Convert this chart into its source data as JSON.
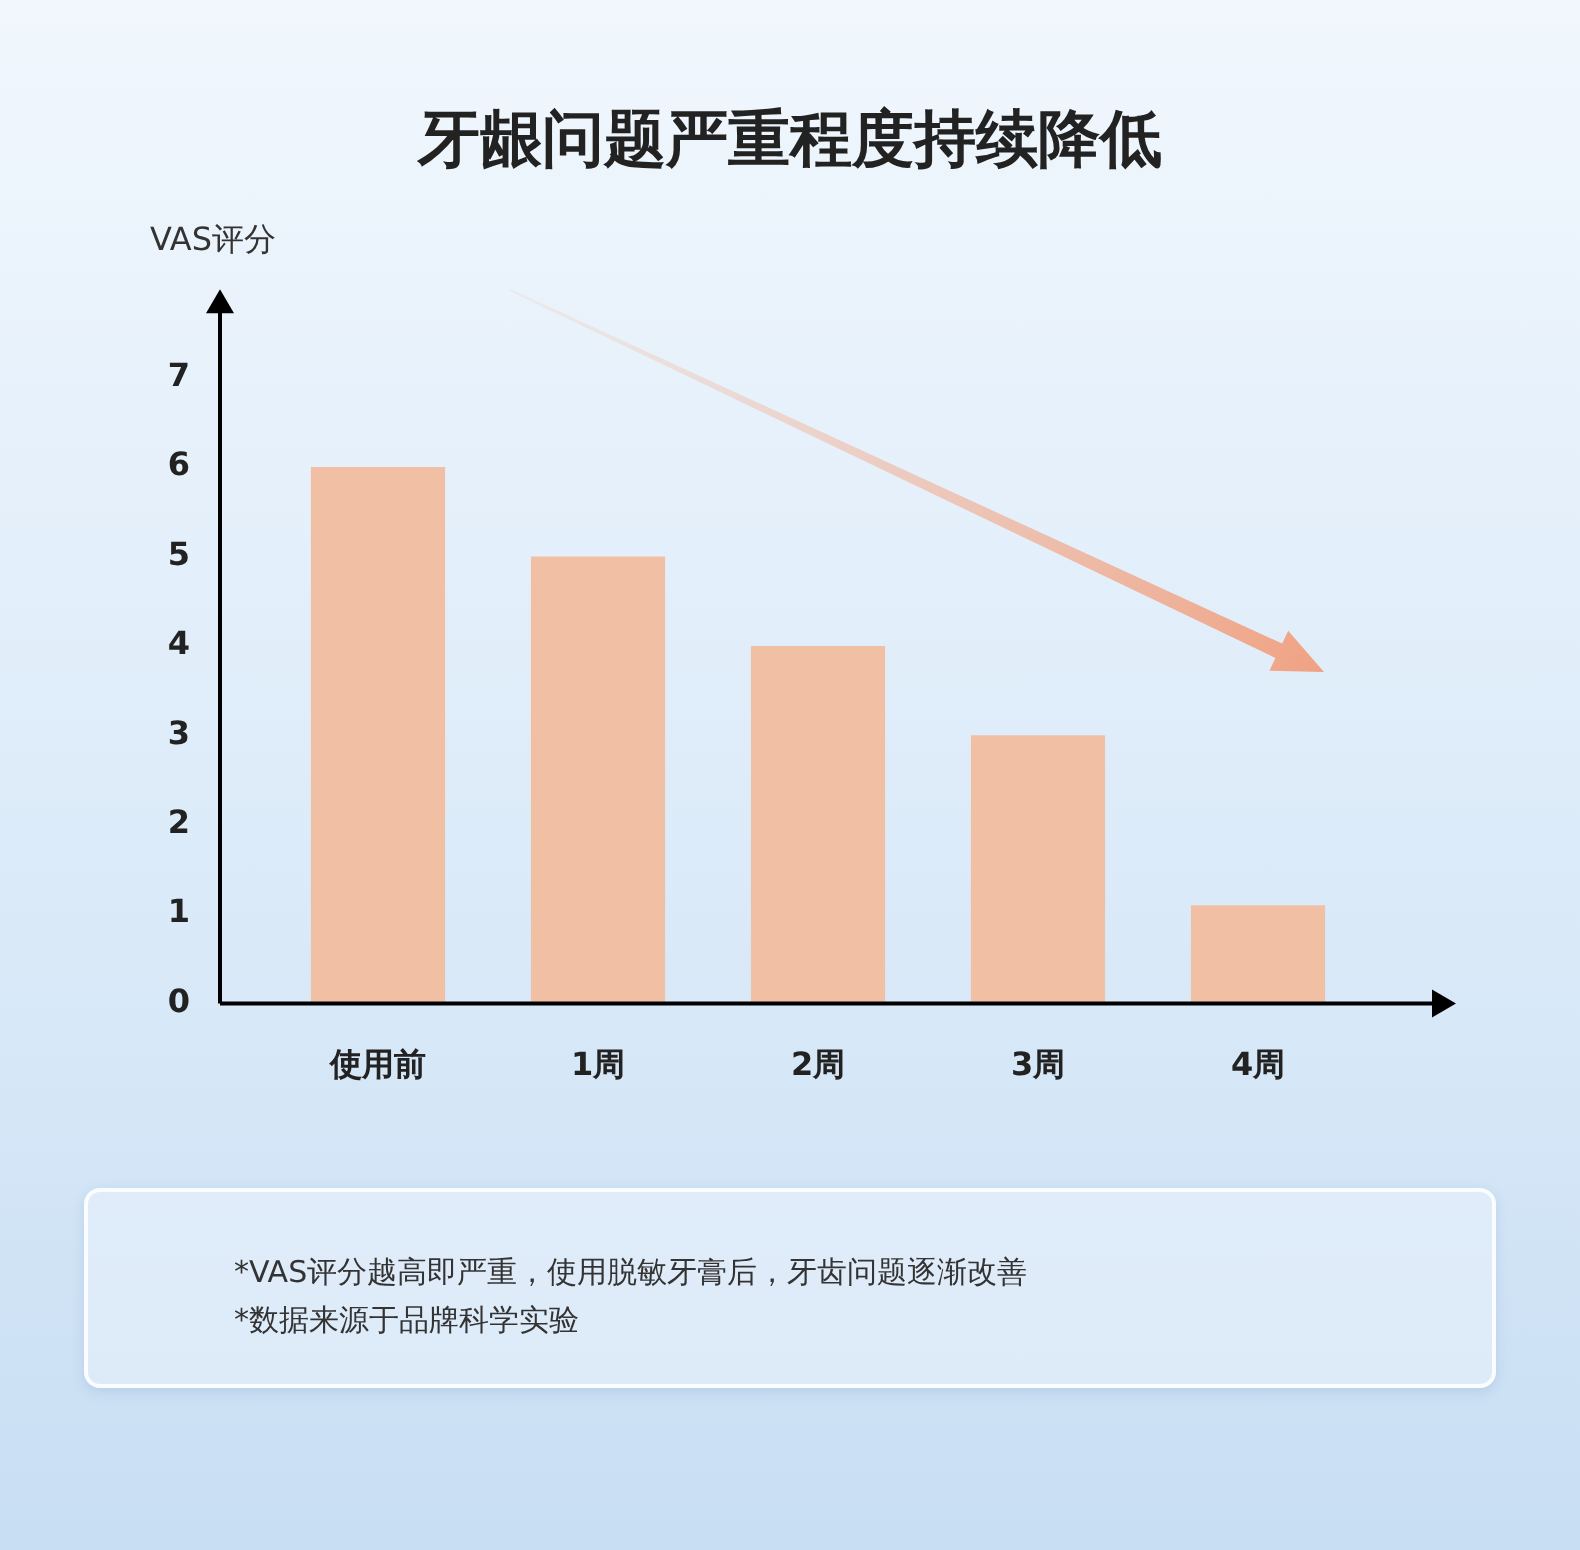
{
  "chart_data": {
    "type": "bar",
    "title": "牙龈问题严重程度持续降低",
    "ylabel": "VAS评分",
    "categories": [
      "使用前",
      "1周",
      "2周",
      "3周",
      "4周"
    ],
    "values": [
      6,
      5,
      4,
      3,
      1.1
    ],
    "color": "#f1c0a4",
    "ylim": [
      0,
      7.9
    ],
    "yticks": [
      0,
      1,
      2,
      3,
      4,
      5,
      6,
      7
    ],
    "annotations": [
      "*VAS评分越高即严重，使用脱敏牙膏后，牙齿问题逐渐改善",
      "*数据来源于品牌科学实验"
    ]
  }
}
